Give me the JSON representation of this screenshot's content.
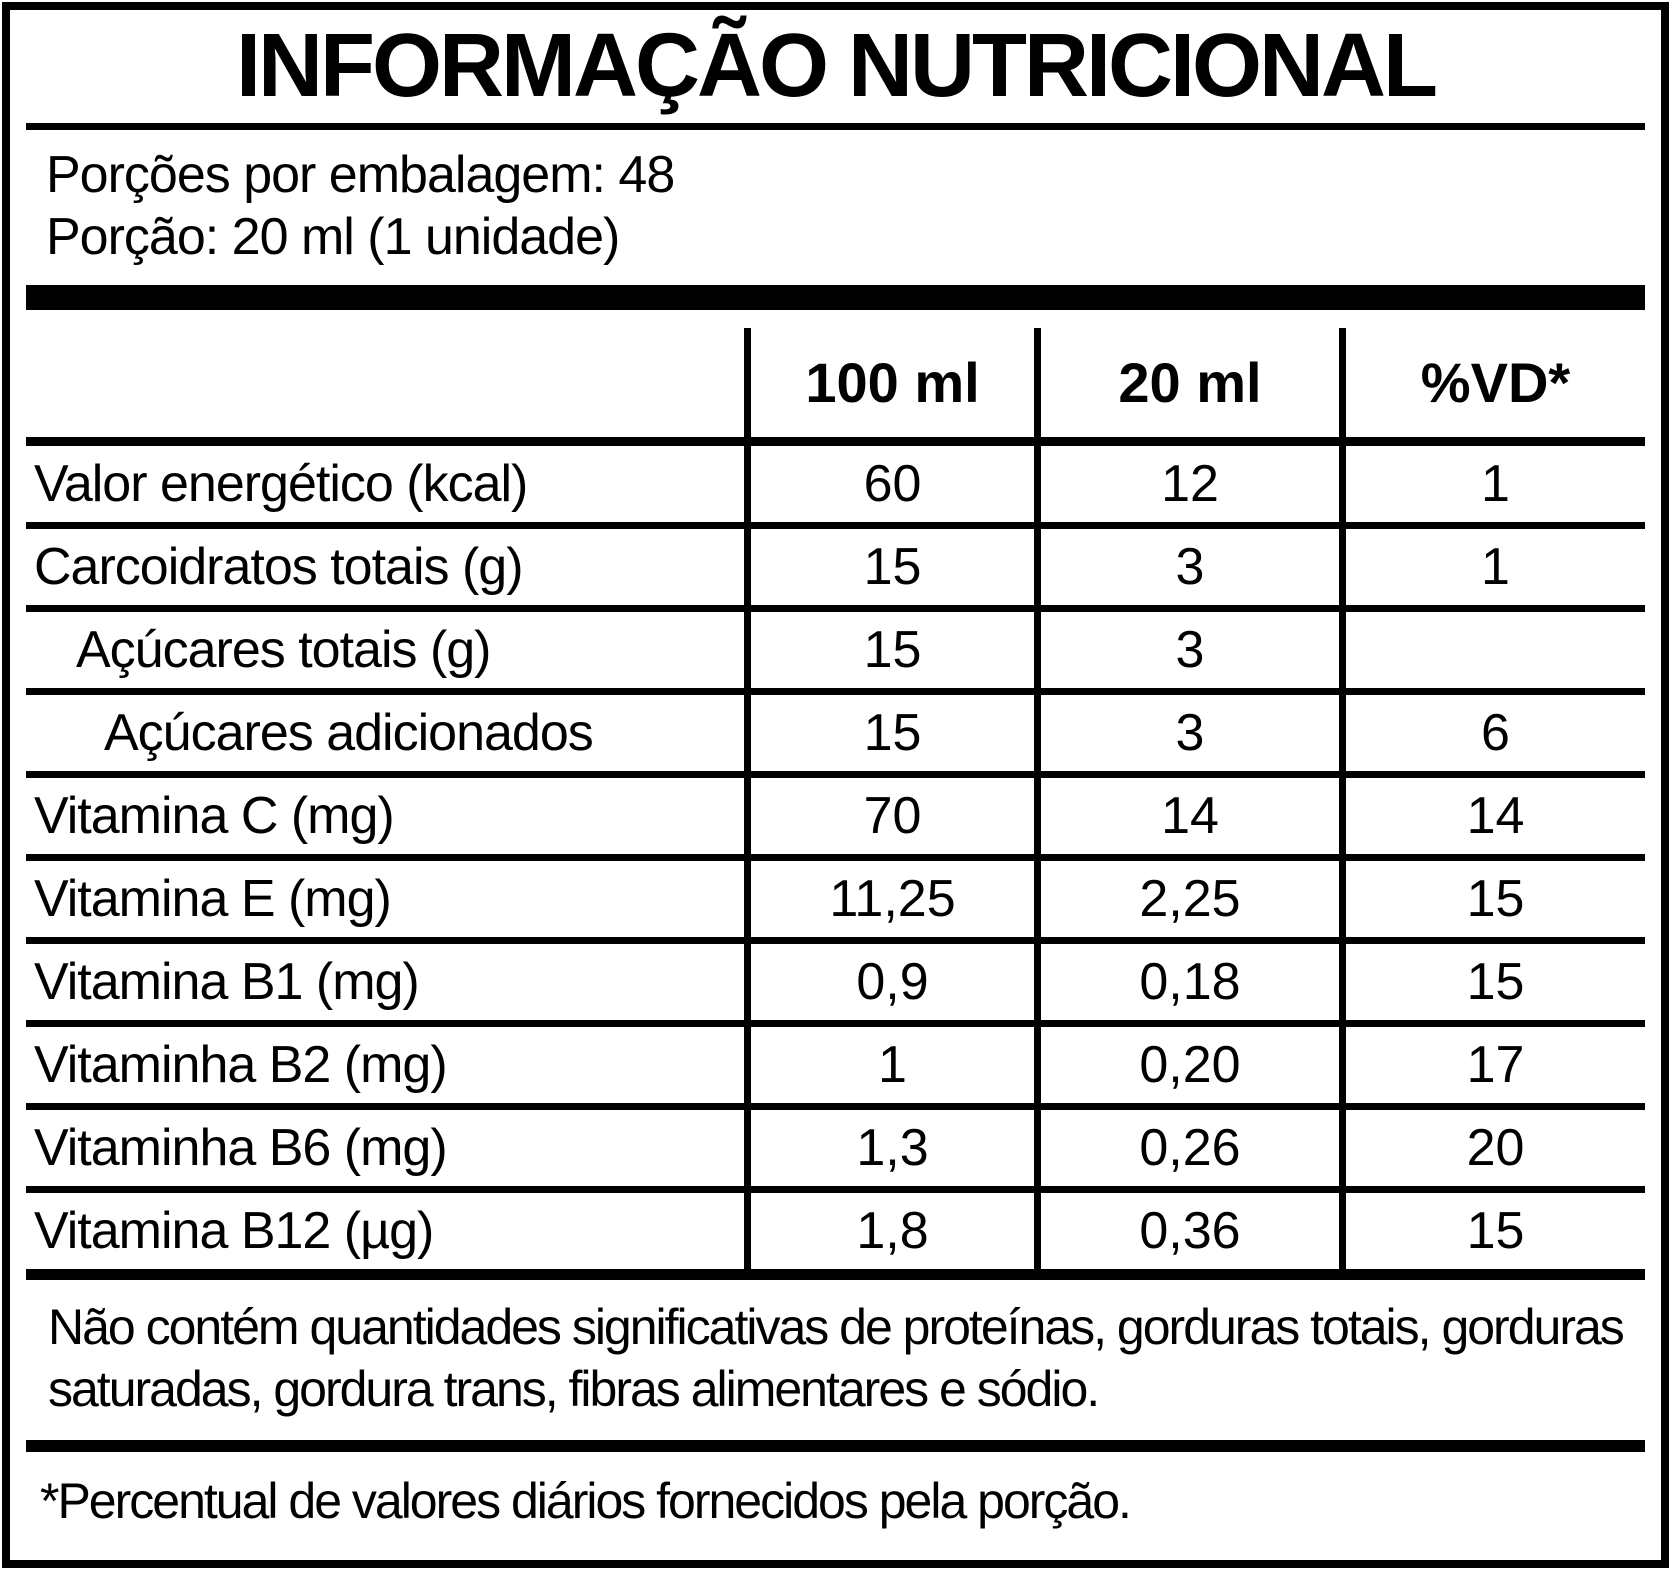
{
  "header": {
    "title": "INFORMAÇÃO NUTRICIONAL",
    "servings_per_package": "Porções por embalagem: 48",
    "serving_size": "Porção: 20 ml (1 unidade)"
  },
  "table": {
    "columns": [
      "100 ml",
      "20 ml",
      "%VD*"
    ],
    "rows": [
      {
        "label": "Valor energético (kcal)",
        "per_100ml": "60",
        "per_20ml": "12",
        "vd": "1"
      },
      {
        "label": "Carcoidratos totais (g)",
        "per_100ml": "15",
        "per_20ml": "3",
        "vd": "1"
      },
      {
        "label": "Açúcares totais (g)",
        "per_100ml": "15",
        "per_20ml": "3",
        "vd": ""
      },
      {
        "label": "Açúcares adicionados",
        "per_100ml": "15",
        "per_20ml": "3",
        "vd": "6"
      },
      {
        "label": "Vitamina C (mg)",
        "per_100ml": "70",
        "per_20ml": "14",
        "vd": "14"
      },
      {
        "label": "Vitamina E (mg)",
        "per_100ml": "11,25",
        "per_20ml": "2,25",
        "vd": "15"
      },
      {
        "label": "Vitamina B1 (mg)",
        "per_100ml": "0,9",
        "per_20ml": "0,18",
        "vd": "15"
      },
      {
        "label": "Vitaminha B2 (mg)",
        "per_100ml": "1",
        "per_20ml": "0,20",
        "vd": "17"
      },
      {
        "label": "Vitaminha B6 (mg)",
        "per_100ml": "1,3",
        "per_20ml": "0,26",
        "vd": "20"
      },
      {
        "label": "Vitamina B12 (µg)",
        "per_100ml": "1,8",
        "per_20ml": "0,36",
        "vd": "15"
      }
    ]
  },
  "footnotes": {
    "no_significant_amounts": "Não contém quantidades significativas de proteínas, gorduras totais, gorduras saturadas, gordura trans, fibras alimentares e sódio.",
    "daily_values": "*Percentual de valores diários fornecidos pela porção."
  },
  "colors": {
    "ink": "#000000",
    "background": "#ffffff"
  }
}
